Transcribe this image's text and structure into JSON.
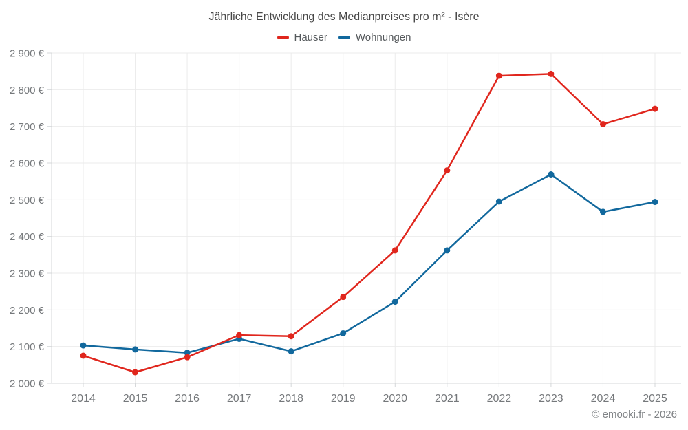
{
  "footer": {
    "credit": "© emooki.fr - 2026"
  },
  "chart_data": {
    "type": "line",
    "title": "Jährliche Entwicklung des Medianpreises pro m² - Isère",
    "x": [
      2014,
      2015,
      2016,
      2017,
      2018,
      2019,
      2020,
      2021,
      2022,
      2023,
      2024,
      2025
    ],
    "series": [
      {
        "name": "Häuser",
        "color": "#e0261d",
        "values": [
          2075,
          2030,
          2071,
          2131,
          2128,
          2235,
          2362,
          2580,
          2838,
          2843,
          2706,
          2748
        ]
      },
      {
        "name": "Wohnungen",
        "color": "#11689d",
        "values": [
          2103,
          2092,
          2083,
          2121,
          2087,
          2136,
          2222,
          2362,
          2495,
          2569,
          2467,
          2494
        ]
      }
    ],
    "ylim": [
      2000,
      2900
    ],
    "y_ticks": [
      2000,
      2100,
      2200,
      2300,
      2400,
      2500,
      2600,
      2700,
      2800,
      2900
    ],
    "y_tick_labels": [
      "2 000 €",
      "2 100 €",
      "2 200 €",
      "2 300 €",
      "2 400 €",
      "2 500 €",
      "2 600 €",
      "2 700 €",
      "2 800 €",
      "2 900 €"
    ],
    "xlabel": "",
    "ylabel": "",
    "grid": true,
    "legend_position": "top"
  }
}
